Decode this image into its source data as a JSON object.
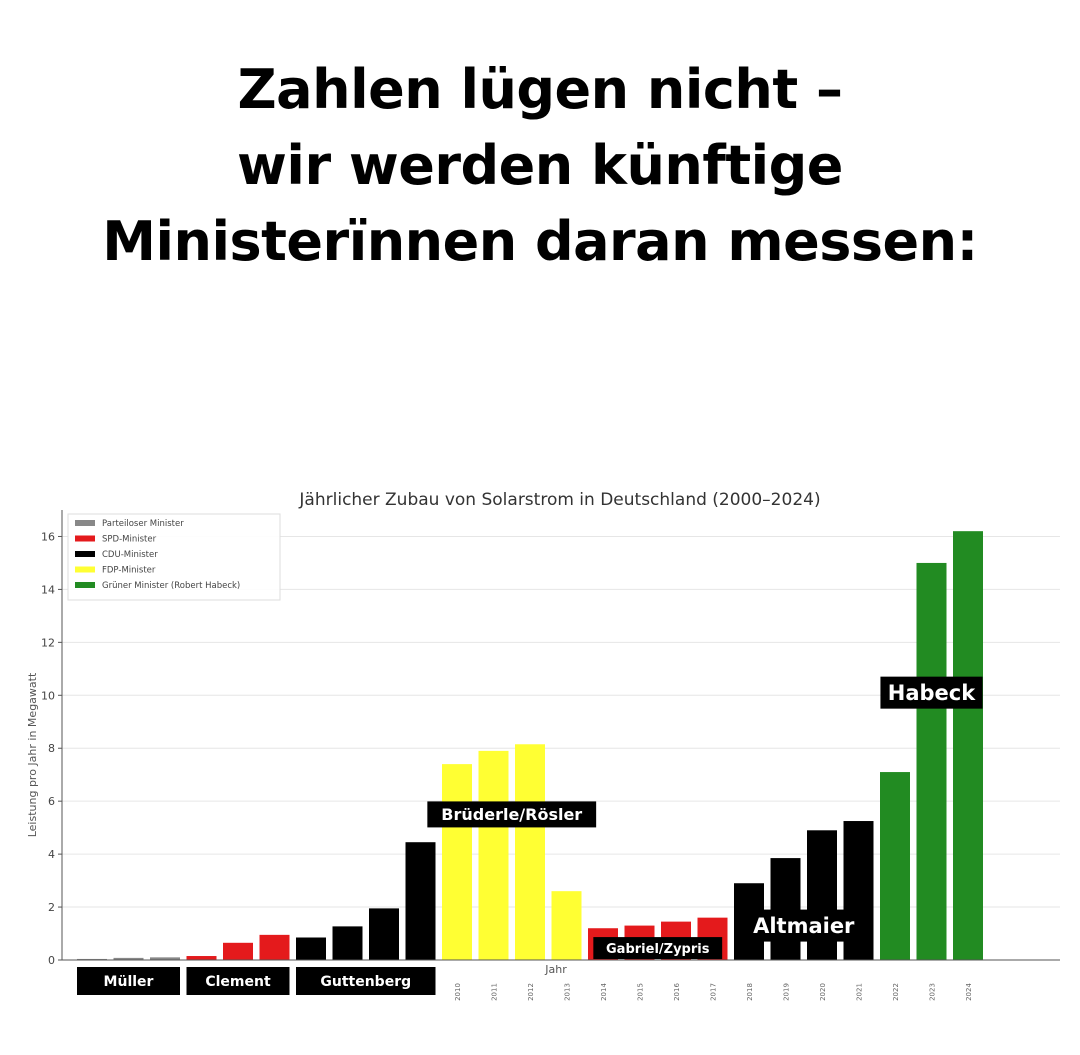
{
  "headline": {
    "line1": "Zahlen lügen nicht –",
    "line2": "wir werden künftige",
    "line3": "Ministerïnnen daran messen:"
  },
  "chart_data": {
    "type": "bar",
    "title": "Jährlicher Zubau von Solarstrom in Deutschland (2000–2024)",
    "xlabel": "Jahr",
    "ylabel": "Leistung pro Jahr in Megawatt",
    "ylim": [
      0,
      17
    ],
    "yticks": [
      0,
      2,
      4,
      6,
      8,
      10,
      12,
      14,
      16
    ],
    "grid": true,
    "legend_position": "top-left",
    "legend": [
      {
        "label": "Parteiloser Minister",
        "color": "#888888"
      },
      {
        "label": "SPD-Minister",
        "color": "#e41a1c"
      },
      {
        "label": "CDU-Minister",
        "color": "#000000"
      },
      {
        "label": "FDP-Minister",
        "color": "#ffff33"
      },
      {
        "label": "Grüner Minister (Robert Habeck)",
        "color": "#228b22"
      }
    ],
    "x_tick_labels": [
      "2010",
      "2011",
      "2012",
      "2013",
      "2014",
      "2015",
      "2016",
      "2017",
      "2018",
      "2019",
      "2020",
      "2021",
      "2022",
      "2023",
      "2024"
    ],
    "bars": [
      {
        "year": 2000,
        "value": 0.04,
        "color": "#888888"
      },
      {
        "year": 2001,
        "value": 0.08,
        "color": "#888888"
      },
      {
        "year": 2002,
        "value": 0.1,
        "color": "#888888"
      },
      {
        "year": 2003,
        "value": 0.15,
        "color": "#e41a1c"
      },
      {
        "year": 2004,
        "value": 0.65,
        "color": "#e41a1c"
      },
      {
        "year": 2005,
        "value": 0.95,
        "color": "#e41a1c"
      },
      {
        "year": 2006,
        "value": 0.85,
        "color": "#000000"
      },
      {
        "year": 2007,
        "value": 1.27,
        "color": "#000000"
      },
      {
        "year": 2008,
        "value": 1.95,
        "color": "#000000"
      },
      {
        "year": 2009,
        "value": 4.45,
        "color": "#000000"
      },
      {
        "year": 2010,
        "value": 7.4,
        "color": "#ffff33"
      },
      {
        "year": 2011,
        "value": 7.9,
        "color": "#ffff33"
      },
      {
        "year": 2012,
        "value": 8.15,
        "color": "#ffff33"
      },
      {
        "year": 2013,
        "value": 2.6,
        "color": "#ffff33"
      },
      {
        "year": 2014,
        "value": 1.2,
        "color": "#e41a1c"
      },
      {
        "year": 2015,
        "value": 1.3,
        "color": "#e41a1c"
      },
      {
        "year": 2016,
        "value": 1.45,
        "color": "#e41a1c"
      },
      {
        "year": 2017,
        "value": 1.6,
        "color": "#e41a1c"
      },
      {
        "year": 2018,
        "value": 2.9,
        "color": "#000000"
      },
      {
        "year": 2019,
        "value": 3.85,
        "color": "#000000"
      },
      {
        "year": 2020,
        "value": 4.9,
        "color": "#000000"
      },
      {
        "year": 2021,
        "value": 5.25,
        "color": "#000000"
      },
      {
        "year": 2022,
        "value": 7.1,
        "color": "#228b22"
      },
      {
        "year": 2023,
        "value": 15.0,
        "color": "#228b22"
      },
      {
        "year": 2024,
        "value": 16.2,
        "color": "#228b22"
      }
    ],
    "minister_labels_below": [
      {
        "text": "Müller",
        "from_year": 2000,
        "to_year": 2002
      },
      {
        "text": "Clement",
        "from_year": 2003,
        "to_year": 2005
      },
      {
        "text": "Guttenberg",
        "from_year": 2006,
        "to_year": 2009
      }
    ],
    "minister_labels_inside": [
      {
        "text": "Brüderle/Rösler",
        "center_year": 2011.5,
        "value": 5.5,
        "size": "medium"
      },
      {
        "text": "Gabriel/Zypris",
        "center_year": 2015.5,
        "value": 0.45,
        "size": "small"
      },
      {
        "text": "Altmaier",
        "center_year": 2019.5,
        "value": 1.3,
        "size": "large"
      },
      {
        "text": "Habeck",
        "center_year": 2023.0,
        "value": 10.1,
        "size": "large"
      }
    ]
  }
}
